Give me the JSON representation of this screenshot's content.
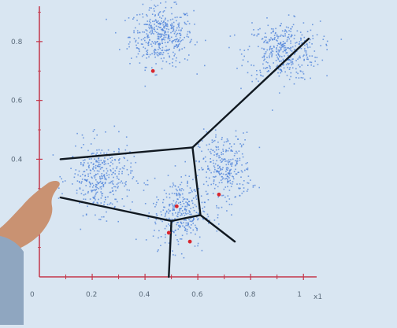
{
  "chart_data": {
    "type": "scatter",
    "title": "",
    "xlabel": "",
    "ylabel": "",
    "x_axis_end_label": "x1",
    "xlim": [
      0,
      1.05
    ],
    "ylim": [
      0,
      0.92
    ],
    "x_ticks": [
      0,
      0.2,
      0.4,
      0.6,
      0.8,
      1
    ],
    "x_tick_labels": [
      "0",
      "0.2",
      "0.4",
      "0.6",
      "0.8",
      "1"
    ],
    "y_ticks": [
      0.4,
      0.6,
      0.8
    ],
    "y_tick_labels": [
      "0.4",
      "0.6",
      "0.8"
    ],
    "clusters": [
      {
        "cx": 0.46,
        "cy": 0.82,
        "sx": 0.06,
        "sy": 0.05,
        "n": 420
      },
      {
        "cx": 0.92,
        "cy": 0.77,
        "sx": 0.07,
        "sy": 0.05,
        "n": 380
      },
      {
        "cx": 0.7,
        "cy": 0.37,
        "sx": 0.05,
        "sy": 0.06,
        "n": 300
      },
      {
        "cx": 0.23,
        "cy": 0.34,
        "sx": 0.06,
        "sy": 0.06,
        "n": 360
      },
      {
        "cx": 0.53,
        "cy": 0.22,
        "sx": 0.05,
        "sy": 0.06,
        "n": 320
      }
    ],
    "centroids": [
      {
        "x": 0.43,
        "y": 0.7
      },
      {
        "x": 0.68,
        "y": 0.28
      },
      {
        "x": 0.52,
        "y": 0.24
      },
      {
        "x": 0.49,
        "y": 0.15
      },
      {
        "x": 0.57,
        "y": 0.12
      }
    ],
    "boundaries": [
      [
        [
          0.08,
          0.4
        ],
        [
          0.58,
          0.44
        ]
      ],
      [
        [
          0.58,
          0.44
        ],
        [
          1.02,
          0.81
        ]
      ],
      [
        [
          0.58,
          0.44
        ],
        [
          0.61,
          0.21
        ]
      ],
      [
        [
          0.61,
          0.21
        ],
        [
          0.5,
          0.19
        ]
      ],
      [
        [
          0.5,
          0.19
        ],
        [
          0.08,
          0.27
        ]
      ],
      [
        [
          0.5,
          0.19
        ],
        [
          0.49,
          0.0
        ]
      ],
      [
        [
          0.61,
          0.21
        ],
        [
          0.74,
          0.12
        ]
      ]
    ],
    "colors": {
      "points": "#4a7fd8",
      "centroids": "#d8262e",
      "boundaries": "#101820",
      "axes": "#c4364a"
    }
  }
}
